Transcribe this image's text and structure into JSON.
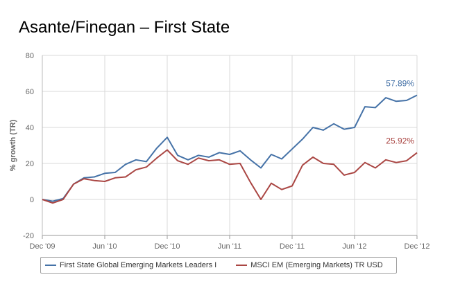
{
  "title": "Asante/Finegan – First State",
  "chart_data": {
    "type": "line",
    "ylabel": "% growth (TR)",
    "xlabel": "",
    "ylim": [
      -20,
      80
    ],
    "y_ticks": [
      "80",
      "60",
      "40",
      "20",
      "0",
      "-20"
    ],
    "x_tick_labels": [
      "Dec '09",
      "Jun '10",
      "Dec '10",
      "Jun '11",
      "Dec '11",
      "Jun '12",
      "Dec '12"
    ],
    "x": [
      "Dec '09",
      "Jan '10",
      "Feb '10",
      "Mar '10",
      "Apr '10",
      "May '10",
      "Jun '10",
      "Jul '10",
      "Aug '10",
      "Sep '10",
      "Oct '10",
      "Nov '10",
      "Dec '10",
      "Jan '11",
      "Feb '11",
      "Mar '11",
      "Apr '11",
      "May '11",
      "Jun '11",
      "Jul '11",
      "Aug '11",
      "Sep '11",
      "Oct '11",
      "Nov '11",
      "Dec '11",
      "Jan '12",
      "Feb '12",
      "Mar '12",
      "Apr '12",
      "May '12",
      "Jun '12",
      "Jul '12",
      "Aug '12",
      "Sep '12",
      "Oct '12",
      "Nov '12",
      "Dec '12"
    ],
    "grid": true,
    "legend_position": "bottom",
    "series": [
      {
        "name": "First State Global Emerging Markets Leaders I",
        "color": "#4572a7",
        "end_label": "57.89%",
        "values": [
          0,
          -1,
          0.5,
          8.5,
          12,
          12.5,
          14.5,
          15,
          19.5,
          22,
          21,
          28.5,
          34.5,
          24.5,
          22,
          24.5,
          23.5,
          26,
          25,
          27,
          22,
          17.5,
          25,
          22.5,
          28,
          33.5,
          40,
          38.5,
          42,
          39,
          40,
          51.5,
          51,
          56.5,
          54.5,
          55,
          57.89
        ]
      },
      {
        "name": "MSCI EM (Emerging Markets) TR USD",
        "color": "#aa4643",
        "end_label": "25.92%",
        "values": [
          0,
          -2,
          0,
          8.5,
          11.5,
          10.5,
          10,
          12,
          12.5,
          16.5,
          18,
          23,
          27.5,
          21.5,
          19.5,
          23,
          21.5,
          22,
          19.5,
          20,
          9.5,
          0,
          9,
          5.5,
          7.5,
          19,
          23.5,
          20,
          19.5,
          13.5,
          15,
          20.5,
          17.5,
          22,
          20.5,
          21.5,
          25.92
        ]
      }
    ]
  }
}
